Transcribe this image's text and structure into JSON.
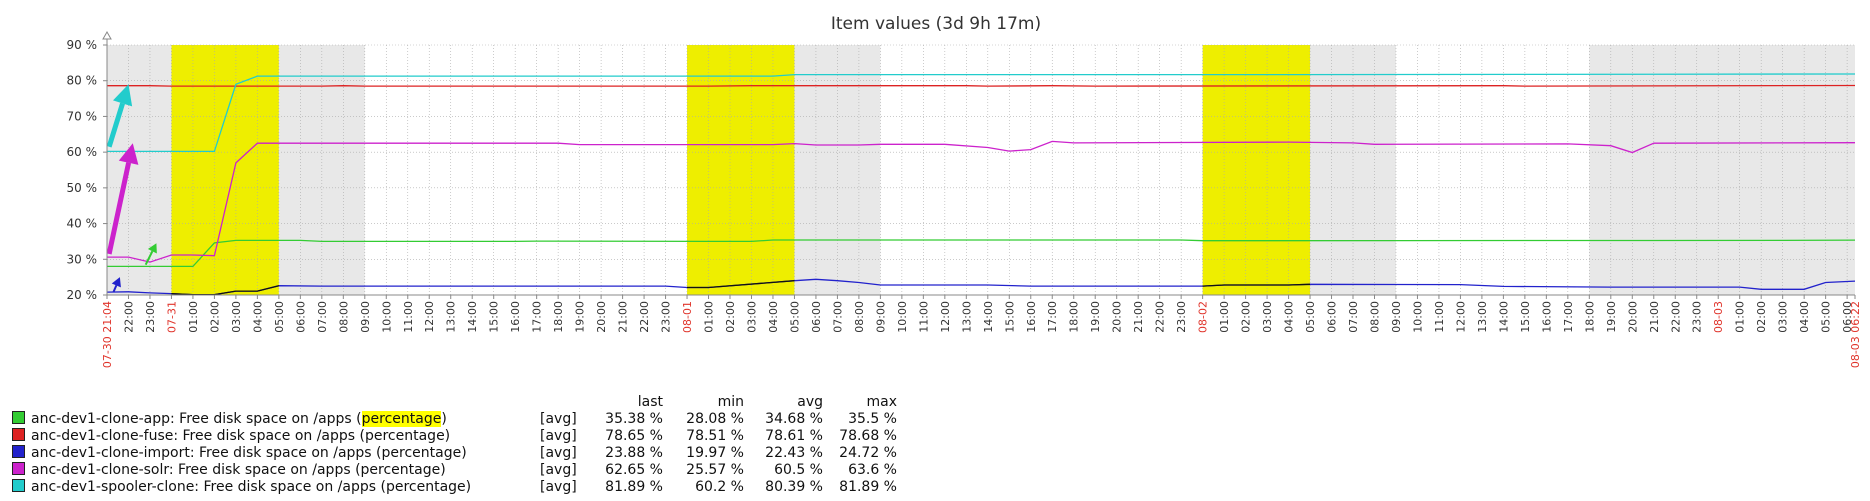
{
  "chart_data": {
    "type": "line",
    "title": "Item values (3d 9h 17m)",
    "y_ticks": [
      "20 %",
      "30 %",
      "40 %",
      "50 %",
      "60 %",
      "70 %",
      "80 %",
      "90 %"
    ],
    "ylim": [
      20,
      90
    ],
    "x_labels": [
      {
        "t": 0,
        "label": "07-30 21:04",
        "red": true
      },
      {
        "t": 1,
        "label": "22:00"
      },
      {
        "t": 2,
        "label": "23:00"
      },
      {
        "t": 3,
        "label": "07-31",
        "red": true
      },
      {
        "t": 4,
        "label": "01:00"
      },
      {
        "t": 5,
        "label": "02:00"
      },
      {
        "t": 6,
        "label": "03:00"
      },
      {
        "t": 7,
        "label": "04:00"
      },
      {
        "t": 8,
        "label": "05:00"
      },
      {
        "t": 9,
        "label": "06:00"
      },
      {
        "t": 10,
        "label": "07:00"
      },
      {
        "t": 11,
        "label": "08:00"
      },
      {
        "t": 12,
        "label": "09:00"
      },
      {
        "t": 13,
        "label": "10:00"
      },
      {
        "t": 14,
        "label": "11:00"
      },
      {
        "t": 15,
        "label": "12:00"
      },
      {
        "t": 16,
        "label": "13:00"
      },
      {
        "t": 17,
        "label": "14:00"
      },
      {
        "t": 18,
        "label": "15:00"
      },
      {
        "t": 19,
        "label": "16:00"
      },
      {
        "t": 20,
        "label": "17:00"
      },
      {
        "t": 21,
        "label": "18:00"
      },
      {
        "t": 22,
        "label": "19:00"
      },
      {
        "t": 23,
        "label": "20:00"
      },
      {
        "t": 24,
        "label": "21:00"
      },
      {
        "t": 25,
        "label": "22:00"
      },
      {
        "t": 26,
        "label": "23:00"
      },
      {
        "t": 27,
        "label": "08-01",
        "red": true
      },
      {
        "t": 28,
        "label": "01:00"
      },
      {
        "t": 29,
        "label": "02:00"
      },
      {
        "t": 30,
        "label": "03:00"
      },
      {
        "t": 31,
        "label": "04:00"
      },
      {
        "t": 32,
        "label": "05:00"
      },
      {
        "t": 33,
        "label": "06:00"
      },
      {
        "t": 34,
        "label": "07:00"
      },
      {
        "t": 35,
        "label": "08:00"
      },
      {
        "t": 36,
        "label": "09:00"
      },
      {
        "t": 37,
        "label": "10:00"
      },
      {
        "t": 38,
        "label": "11:00"
      },
      {
        "t": 39,
        "label": "12:00"
      },
      {
        "t": 40,
        "label": "13:00"
      },
      {
        "t": 41,
        "label": "14:00"
      },
      {
        "t": 42,
        "label": "15:00"
      },
      {
        "t": 43,
        "label": "16:00"
      },
      {
        "t": 44,
        "label": "17:00"
      },
      {
        "t": 45,
        "label": "18:00"
      },
      {
        "t": 46,
        "label": "19:00"
      },
      {
        "t": 47,
        "label": "20:00"
      },
      {
        "t": 48,
        "label": "21:00"
      },
      {
        "t": 49,
        "label": "22:00"
      },
      {
        "t": 50,
        "label": "23:00"
      },
      {
        "t": 51,
        "label": "08-02",
        "red": true
      },
      {
        "t": 52,
        "label": "01:00"
      },
      {
        "t": 53,
        "label": "02:00"
      },
      {
        "t": 54,
        "label": "03:00"
      },
      {
        "t": 55,
        "label": "04:00"
      },
      {
        "t": 56,
        "label": "05:00"
      },
      {
        "t": 57,
        "label": "06:00"
      },
      {
        "t": 58,
        "label": "07:00"
      },
      {
        "t": 59,
        "label": "08:00"
      },
      {
        "t": 60,
        "label": "09:00"
      },
      {
        "t": 61,
        "label": "10:00"
      },
      {
        "t": 62,
        "label": "11:00"
      },
      {
        "t": 63,
        "label": "12:00"
      },
      {
        "t": 64,
        "label": "13:00"
      },
      {
        "t": 65,
        "label": "14:00"
      },
      {
        "t": 66,
        "label": "15:00"
      },
      {
        "t": 67,
        "label": "16:00"
      },
      {
        "t": 68,
        "label": "17:00"
      },
      {
        "t": 69,
        "label": "18:00"
      },
      {
        "t": 70,
        "label": "19:00"
      },
      {
        "t": 71,
        "label": "20:00"
      },
      {
        "t": 72,
        "label": "21:00"
      },
      {
        "t": 73,
        "label": "22:00"
      },
      {
        "t": 74,
        "label": "23:00"
      },
      {
        "t": 75,
        "label": "08-03",
        "red": true
      },
      {
        "t": 76,
        "label": "01:00"
      },
      {
        "t": 77,
        "label": "02:00"
      },
      {
        "t": 78,
        "label": "03:00"
      },
      {
        "t": 79,
        "label": "04:00"
      },
      {
        "t": 80,
        "label": "05:00"
      },
      {
        "t": 81,
        "label": "06:00"
      },
      {
        "t": 81.367,
        "label": "08-03 06:22",
        "red": true
      }
    ],
    "xlim": [
      0,
      81.367
    ],
    "shaded_hour_ranges": [
      [
        0,
        3
      ],
      [
        8,
        12
      ],
      [
        32,
        36
      ],
      [
        56,
        60
      ],
      [
        69,
        81.367
      ]
    ],
    "highlight_hour_ranges": [
      [
        3,
        8
      ],
      [
        27,
        32
      ],
      [
        51,
        56
      ]
    ],
    "grid": true,
    "legend_position": "bottom-left",
    "legend_headers": {
      "last": "last",
      "min": "min",
      "avg": "avg",
      "max": "max"
    },
    "series": [
      {
        "name": "anc-dev1-clone-app: Free disk space on /apps (percentage)",
        "name_prefix": "anc-dev1-clone-app: Free disk space on /apps (",
        "name_highlight": "percentage",
        "name_suffix": ")",
        "func": "[avg]",
        "last": "35.38 %",
        "min": "28.08 %",
        "avg": "34.68 %",
        "max": "35.5 %",
        "color": "#33cc33",
        "points": [
          [
            0,
            28
          ],
          [
            1,
            28
          ],
          [
            2,
            28
          ],
          [
            3,
            28
          ],
          [
            4,
            28
          ],
          [
            5,
            34.6
          ],
          [
            6,
            35.3
          ],
          [
            9,
            35.3
          ],
          [
            10,
            35
          ],
          [
            19,
            35
          ],
          [
            20,
            35.1
          ],
          [
            28,
            35
          ],
          [
            30,
            35
          ],
          [
            31,
            35.4
          ],
          [
            50,
            35.4
          ],
          [
            51,
            35.2
          ],
          [
            78,
            35.3
          ],
          [
            81.367,
            35.38
          ]
        ]
      },
      {
        "name": "anc-dev1-clone-fuse: Free disk space on /apps (percentage)",
        "func": "[avg]",
        "last": "78.65 %",
        "min": "78.51 %",
        "avg": "78.61 %",
        "max": "78.68 %",
        "color": "#dd2222",
        "points": [
          [
            0,
            78.6
          ],
          [
            2,
            78.6
          ],
          [
            3,
            78.5
          ],
          [
            10,
            78.5
          ],
          [
            11,
            78.6
          ],
          [
            12,
            78.5
          ],
          [
            28,
            78.5
          ],
          [
            30,
            78.6
          ],
          [
            40,
            78.6
          ],
          [
            41,
            78.5
          ],
          [
            44,
            78.6
          ],
          [
            46,
            78.5
          ],
          [
            65,
            78.6
          ],
          [
            66,
            78.5
          ],
          [
            81.367,
            78.65
          ]
        ]
      },
      {
        "name": "anc-dev1-clone-import: Free disk space on /apps (percentage)",
        "func": "[avg]",
        "last": "23.88 %",
        "min": "19.97 %",
        "avg": "22.43 %",
        "max": "24.72 %",
        "color": "#2222cc",
        "points": [
          [
            0,
            20.8
          ],
          [
            1,
            20.9
          ],
          [
            2,
            20.6
          ],
          [
            3,
            20.4
          ],
          [
            4,
            20.1
          ],
          [
            5,
            20.1
          ],
          [
            6,
            21.1
          ],
          [
            7,
            21.1
          ],
          [
            8,
            22.6
          ],
          [
            10,
            22.5
          ],
          [
            26,
            22.5
          ],
          [
            27,
            22.1
          ],
          [
            28,
            22.1
          ],
          [
            32,
            24
          ],
          [
            33,
            24.4
          ],
          [
            34,
            24
          ],
          [
            35,
            23.5
          ],
          [
            36,
            22.8
          ],
          [
            41,
            22.8
          ],
          [
            43,
            22.5
          ],
          [
            51,
            22.5
          ],
          [
            52,
            22.8
          ],
          [
            55,
            22.8
          ],
          [
            56,
            23
          ],
          [
            63,
            22.9
          ],
          [
            65,
            22.4
          ],
          [
            70,
            22.2
          ],
          [
            76,
            22.2
          ],
          [
            77,
            21.6
          ],
          [
            79,
            21.6
          ],
          [
            80,
            23.5
          ],
          [
            81.367,
            23.88
          ]
        ]
      },
      {
        "name": "anc-dev1-clone-solr: Free disk space on /apps (percentage)",
        "func": "[avg]",
        "last": "62.65 %",
        "min": "25.57 %",
        "avg": "60.5 %",
        "max": "63.6 %",
        "color": "#cc22cc",
        "points": [
          [
            0,
            30.6
          ],
          [
            1,
            30.6
          ],
          [
            2,
            29.2
          ],
          [
            3,
            31.2
          ],
          [
            4,
            31.2
          ],
          [
            5,
            31
          ],
          [
            6,
            57
          ],
          [
            7,
            62.5
          ],
          [
            21,
            62.5
          ],
          [
            22,
            62.1
          ],
          [
            31,
            62.1
          ],
          [
            32,
            62.4
          ],
          [
            33,
            62
          ],
          [
            35,
            62
          ],
          [
            36,
            62.2
          ],
          [
            39,
            62.2
          ],
          [
            41,
            61.3
          ],
          [
            42,
            60.3
          ],
          [
            43,
            60.7
          ],
          [
            44,
            63
          ],
          [
            45,
            62.6
          ],
          [
            55,
            62.8
          ],
          [
            58,
            62.6
          ],
          [
            59,
            62.2
          ],
          [
            68,
            62.3
          ],
          [
            70,
            61.8
          ],
          [
            71,
            59.9
          ],
          [
            72,
            62.5
          ],
          [
            81.367,
            62.65
          ]
        ]
      },
      {
        "name": "anc-dev1-spooler-clone: Free disk space on /apps (percentage)",
        "func": "[avg]",
        "last": "81.89 %",
        "min": "60.2 %",
        "avg": "80.39 %",
        "max": "81.89 %",
        "color": "#22cccc",
        "points": [
          [
            0,
            60.2
          ],
          [
            4,
            60.2
          ],
          [
            5,
            60.2
          ],
          [
            6,
            79
          ],
          [
            7,
            81.3
          ],
          [
            31,
            81.3
          ],
          [
            32,
            81.7
          ],
          [
            55,
            81.7
          ],
          [
            81.367,
            81.89
          ]
        ]
      }
    ],
    "annotation_arrows": [
      {
        "color": "#22cccc",
        "from": [
          0.1,
          61.5
        ],
        "to": [
          1.0,
          79
        ]
      },
      {
        "color": "#cc22cc",
        "from": [
          0.1,
          31.5
        ],
        "to": [
          1.2,
          62.5
        ]
      },
      {
        "color": "#33cc33",
        "from": [
          1.8,
          28.5
        ],
        "to": [
          2.3,
          34.5
        ]
      },
      {
        "color": "#2222cc",
        "from": [
          0.3,
          20.8
        ],
        "to": [
          0.6,
          25
        ]
      }
    ]
  }
}
